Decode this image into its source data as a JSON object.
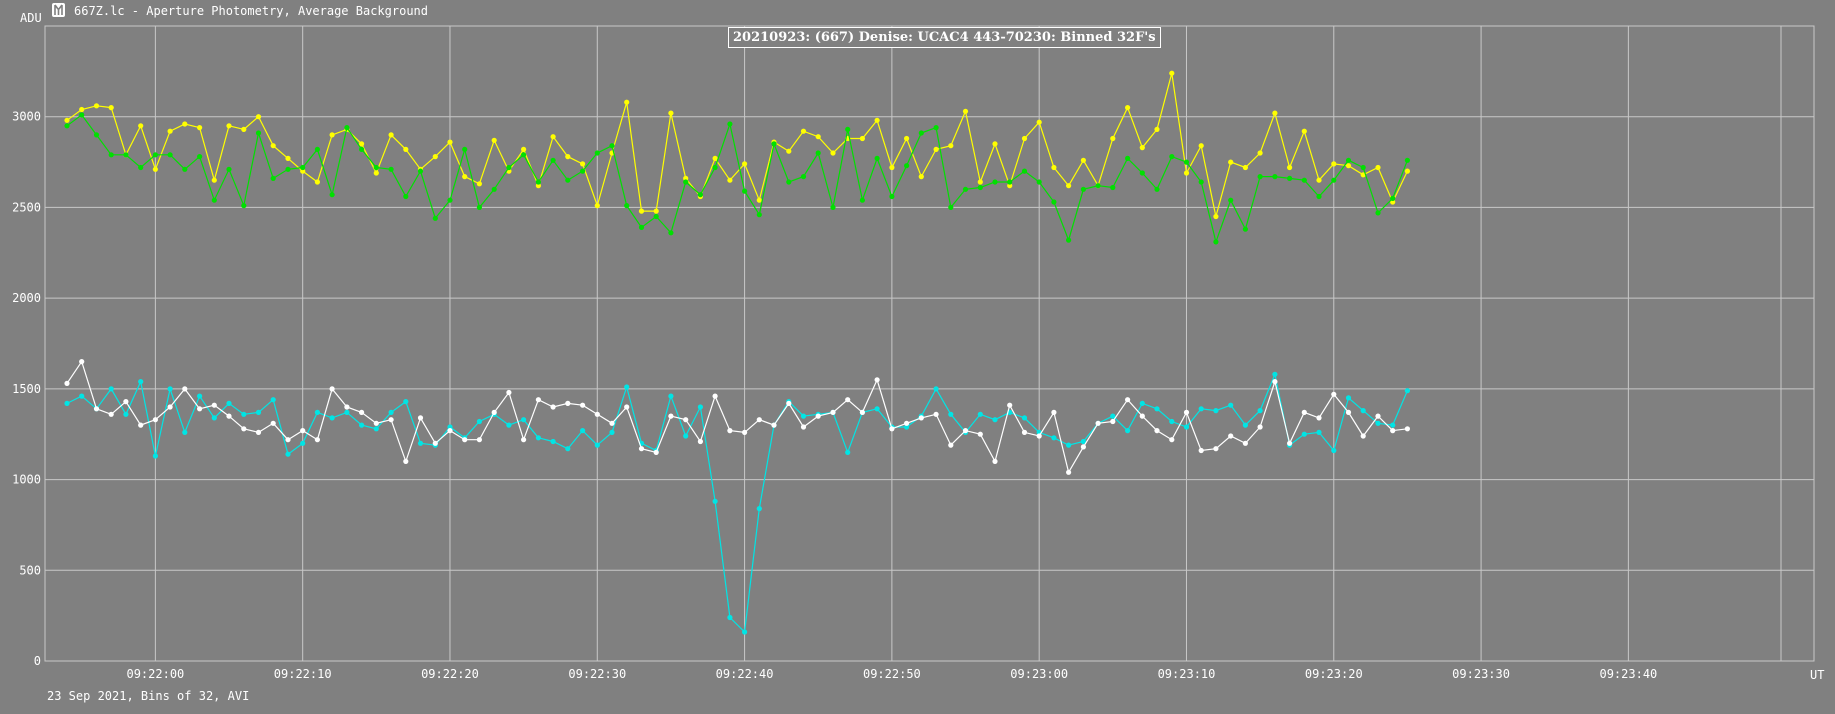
{
  "window": {
    "title": "667Z.lc - Aperture Photometry, Average Background"
  },
  "footer": "23 Sep 2021, Bins of 32, AVI",
  "colors": {
    "background": "#808080",
    "grid": "#c8c8c8",
    "yellow": "#ffff00",
    "green": "#00e000",
    "cyan": "#00e5e5",
    "white": "#ffffff"
  },
  "chart_data": {
    "type": "line",
    "title": "20210923: (667) Denise: UCAC4 443-70230: Binned 32F's",
    "ylabel": "ADU",
    "xlabel": "UT",
    "ylim": [
      0,
      3500
    ],
    "xlim": [
      0,
      117
    ],
    "grid": true,
    "y_ticks": [
      0,
      500,
      1000,
      1500,
      2000,
      2500,
      3000
    ],
    "x_tick_positions": [
      6,
      16,
      26,
      36,
      46,
      56,
      66,
      76,
      86,
      96,
      106
    ],
    "x_tick_labels": [
      "09:22:00",
      "09:22:10",
      "09:22:20",
      "09:22:30",
      "09:22:40",
      "09:22:50",
      "09:23:00",
      "09:23:10",
      "09:23:20",
      "09:23:30",
      "09:23:40"
    ],
    "series": [
      {
        "color": "yellow",
        "values": [
          2980,
          3040,
          3060,
          3050,
          2790,
          2950,
          2710,
          2920,
          2960,
          2940,
          2650,
          2950,
          2930,
          3000,
          2840,
          2770,
          2700,
          2640,
          2900,
          2930,
          2850,
          2690,
          2900,
          2820,
          2710,
          2780,
          2860,
          2670,
          2630,
          2870,
          2700,
          2820,
          2620,
          2890,
          2780,
          2740,
          2510,
          2800,
          3080,
          2480,
          2480,
          3020,
          2660,
          2560,
          2770,
          2650,
          2740,
          2540,
          2860,
          2810,
          2920,
          2890,
          2800,
          2880,
          2880,
          2980,
          2720,
          2880,
          2670,
          2820,
          2840,
          3030,
          2640,
          2850,
          2620,
          2880,
          2970,
          2720,
          2620,
          2760,
          2620,
          2880,
          3050,
          2830,
          2930,
          3240,
          2690,
          2840,
          2450,
          2750,
          2720,
          2800,
          3020,
          2720,
          2920,
          2650,
          2740,
          2730,
          2680,
          2720,
          2530,
          2700
        ]
      },
      {
        "color": "green",
        "values": [
          2950,
          3010,
          2900,
          2790,
          2790,
          2720,
          2790,
          2790,
          2710,
          2780,
          2540,
          2710,
          2510,
          2910,
          2660,
          2710,
          2720,
          2820,
          2570,
          2940,
          2820,
          2720,
          2710,
          2560,
          2700,
          2440,
          2540,
          2820,
          2500,
          2600,
          2720,
          2790,
          2640,
          2760,
          2650,
          2700,
          2800,
          2840,
          2510,
          2390,
          2450,
          2360,
          2640,
          2570,
          2720,
          2960,
          2590,
          2460,
          2850,
          2640,
          2670,
          2800,
          2500,
          2930,
          2540,
          2770,
          2560,
          2730,
          2910,
          2940,
          2500,
          2600,
          2610,
          2640,
          2640,
          2700,
          2640,
          2530,
          2320,
          2600,
          2620,
          2610,
          2770,
          2690,
          2600,
          2780,
          2750,
          2640,
          2310,
          2540,
          2380,
          2670,
          2670,
          2660,
          2650,
          2560,
          2650,
          2760,
          2720,
          2470,
          2550,
          2760
        ]
      },
      {
        "color": "cyan",
        "values": [
          1420,
          1460,
          1390,
          1500,
          1360,
          1540,
          1130,
          1500,
          1260,
          1460,
          1340,
          1420,
          1360,
          1370,
          1440,
          1140,
          1200,
          1370,
          1340,
          1370,
          1300,
          1280,
          1370,
          1430,
          1200,
          1190,
          1290,
          1230,
          1320,
          1360,
          1300,
          1330,
          1230,
          1210,
          1170,
          1270,
          1190,
          1260,
          1510,
          1200,
          1160,
          1460,
          1240,
          1400,
          880,
          240,
          160,
          840,
          1300,
          1430,
          1350,
          1360,
          1370,
          1150,
          1370,
          1390,
          1290,
          1290,
          1350,
          1500,
          1360,
          1260,
          1360,
          1330,
          1370,
          1340,
          1260,
          1230,
          1190,
          1210,
          1310,
          1350,
          1270,
          1420,
          1390,
          1320,
          1290,
          1390,
          1380,
          1410,
          1300,
          1380,
          1580,
          1190,
          1250,
          1260,
          1160,
          1450,
          1380,
          1310,
          1300,
          1490
        ]
      },
      {
        "color": "white",
        "values": [
          1530,
          1650,
          1390,
          1360,
          1430,
          1300,
          1330,
          1400,
          1500,
          1390,
          1410,
          1350,
          1280,
          1260,
          1310,
          1220,
          1270,
          1220,
          1500,
          1400,
          1370,
          1310,
          1330,
          1100,
          1340,
          1200,
          1270,
          1220,
          1220,
          1370,
          1480,
          1220,
          1440,
          1400,
          1420,
          1410,
          1360,
          1310,
          1400,
          1170,
          1150,
          1350,
          1330,
          1210,
          1460,
          1270,
          1260,
          1330,
          1300,
          1420,
          1290,
          1350,
          1370,
          1440,
          1370,
          1550,
          1280,
          1310,
          1340,
          1360,
          1190,
          1270,
          1250,
          1100,
          1410,
          1260,
          1240,
          1370,
          1040,
          1180,
          1310,
          1320,
          1440,
          1350,
          1270,
          1220,
          1370,
          1160,
          1170,
          1240,
          1200,
          1290,
          1540,
          1200,
          1370,
          1340,
          1470,
          1370,
          1240,
          1350,
          1270,
          1280
        ]
      }
    ]
  }
}
